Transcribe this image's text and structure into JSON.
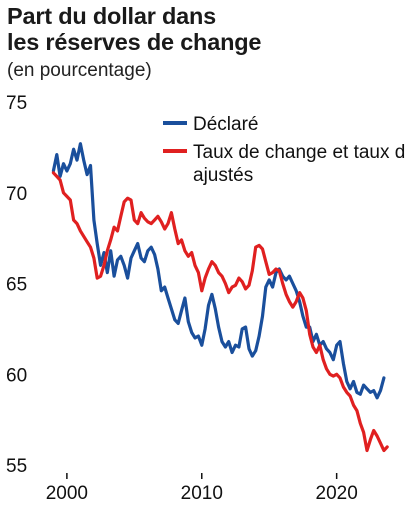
{
  "chart_data": {
    "type": "line",
    "title_lines": [
      "Part du dollar dans",
      "les réserves de change"
    ],
    "subtitle": "(en pourcentage)",
    "xlabel": "",
    "ylabel": "",
    "xlim": [
      1998.6,
      2024.4
    ],
    "ylim": [
      55,
      75
    ],
    "y_ticks": [
      "75",
      "70",
      "65",
      "60",
      "55"
    ],
    "x_ticks": [
      "2000",
      "2010",
      "2020"
    ],
    "grid": false,
    "legend_position": "top-right",
    "series": [
      {
        "name": "Déclaré",
        "color": "#1a4f9c",
        "x": [
          1999.0,
          1999.25,
          1999.5,
          1999.75,
          2000.0,
          2000.25,
          2000.5,
          2000.75,
          2001.0,
          2001.25,
          2001.5,
          2001.75,
          2002.0,
          2002.25,
          2002.5,
          2002.75,
          2003.0,
          2003.25,
          2003.5,
          2003.75,
          2004.0,
          2004.25,
          2004.5,
          2004.75,
          2005.0,
          2005.25,
          2005.5,
          2005.75,
          2006.0,
          2006.25,
          2006.5,
          2006.75,
          2007.0,
          2007.25,
          2007.5,
          2007.75,
          2008.0,
          2008.25,
          2008.5,
          2008.75,
          2009.0,
          2009.25,
          2009.5,
          2009.75,
          2010.0,
          2010.25,
          2010.5,
          2010.75,
          2011.0,
          2011.25,
          2011.5,
          2011.75,
          2012.0,
          2012.25,
          2012.5,
          2012.75,
          2013.0,
          2013.25,
          2013.5,
          2013.75,
          2014.0,
          2014.25,
          2014.5,
          2014.75,
          2015.0,
          2015.25,
          2015.5,
          2015.75,
          2016.0,
          2016.25,
          2016.5,
          2016.75,
          2017.0,
          2017.25,
          2017.5,
          2017.75,
          2018.0,
          2018.25,
          2018.5,
          2018.75,
          2019.0,
          2019.25,
          2019.5,
          2019.75,
          2020.0,
          2020.25,
          2020.5,
          2020.75,
          2021.0,
          2021.25,
          2021.5,
          2021.75,
          2022.0,
          2022.25,
          2022.5,
          2022.75,
          2023.0,
          2023.25,
          2023.5
        ],
        "values": [
          71.2,
          72.1,
          70.9,
          71.6,
          71.2,
          71.6,
          72.4,
          71.8,
          72.7,
          71.8,
          71.0,
          71.5,
          68.5,
          67.2,
          66.0,
          66.7,
          65.6,
          66.8,
          65.4,
          66.3,
          66.5,
          66.0,
          65.3,
          66.4,
          66.8,
          67.2,
          66.4,
          66.2,
          66.8,
          67.0,
          66.6,
          65.8,
          64.6,
          64.8,
          64.2,
          63.6,
          63.0,
          62.8,
          63.5,
          64.2,
          62.9,
          62.3,
          62.0,
          62.1,
          61.6,
          62.5,
          63.8,
          64.4,
          63.6,
          62.6,
          61.8,
          61.5,
          61.8,
          61.2,
          61.6,
          61.5,
          62.5,
          62.6,
          61.4,
          61.0,
          61.3,
          62.1,
          63.2,
          64.8,
          65.2,
          64.8,
          65.6,
          65.8,
          65.4,
          65.2,
          65.4,
          65.0,
          64.6,
          64.0,
          63.2,
          62.6,
          62.6,
          61.8,
          62.2,
          61.6,
          61.8,
          61.4,
          61.2,
          60.8,
          61.6,
          61.8,
          60.6,
          59.6,
          59.2,
          59.6,
          59.0,
          58.9,
          59.4,
          59.2,
          59.0,
          59.1,
          58.7,
          59.1,
          59.8
        ]
      },
      {
        "name": "Taux de change et taux d’intérêt ajustés",
        "color": "#e02020",
        "x": [
          1999.0,
          1999.25,
          1999.5,
          1999.75,
          2000.0,
          2000.25,
          2000.5,
          2000.75,
          2001.0,
          2001.25,
          2001.5,
          2001.75,
          2002.0,
          2002.25,
          2002.5,
          2002.75,
          2003.0,
          2003.25,
          2003.5,
          2003.75,
          2004.0,
          2004.25,
          2004.5,
          2004.75,
          2005.0,
          2005.25,
          2005.5,
          2005.75,
          2006.0,
          2006.25,
          2006.5,
          2006.75,
          2007.0,
          2007.25,
          2007.5,
          2007.75,
          2008.0,
          2008.25,
          2008.5,
          2008.75,
          2009.0,
          2009.25,
          2009.5,
          2009.75,
          2010.0,
          2010.25,
          2010.5,
          2010.75,
          2011.0,
          2011.25,
          2011.5,
          2011.75,
          2012.0,
          2012.25,
          2012.5,
          2012.75,
          2013.0,
          2013.25,
          2013.5,
          2013.75,
          2014.0,
          2014.25,
          2014.5,
          2014.75,
          2015.0,
          2015.25,
          2015.5,
          2015.75,
          2016.0,
          2016.25,
          2016.5,
          2016.75,
          2017.0,
          2017.25,
          2017.5,
          2017.75,
          2018.0,
          2018.25,
          2018.5,
          2018.75,
          2019.0,
          2019.25,
          2019.5,
          2019.75,
          2020.0,
          2020.25,
          2020.5,
          2020.75,
          2021.0,
          2021.25,
          2021.5,
          2021.75,
          2022.0,
          2022.25,
          2022.5,
          2022.75,
          2023.0,
          2023.25,
          2023.5,
          2023.75
        ],
        "values": [
          71.1,
          70.9,
          70.7,
          70.0,
          69.8,
          69.6,
          68.5,
          68.3,
          67.9,
          67.6,
          67.3,
          67.0,
          66.4,
          65.3,
          65.4,
          66.0,
          66.8,
          67.4,
          68.1,
          67.9,
          68.7,
          69.5,
          69.7,
          69.6,
          68.5,
          68.3,
          68.9,
          68.6,
          68.4,
          68.3,
          68.5,
          68.7,
          68.4,
          68.0,
          68.3,
          68.9,
          68.0,
          67.2,
          67.4,
          66.8,
          66.5,
          66.7,
          66.0,
          65.6,
          64.6,
          65.3,
          65.8,
          66.2,
          66.0,
          65.6,
          65.4,
          65.0,
          64.5,
          64.8,
          64.9,
          65.3,
          65.1,
          64.7,
          64.9,
          65.7,
          67.0,
          67.1,
          66.9,
          66.2,
          65.5,
          65.6,
          65.8,
          65.7,
          65.0,
          64.4,
          64.0,
          63.7,
          64.0,
          64.5,
          64.2,
          63.5,
          62.2,
          61.5,
          61.2,
          61.6,
          60.8,
          60.3,
          60.0,
          59.9,
          60.0,
          59.8,
          59.3,
          59.0,
          58.8,
          58.3,
          58.0,
          57.3,
          56.8,
          55.8,
          56.4,
          56.9,
          56.6,
          56.2,
          55.8,
          56.0
        ]
      }
    ]
  }
}
